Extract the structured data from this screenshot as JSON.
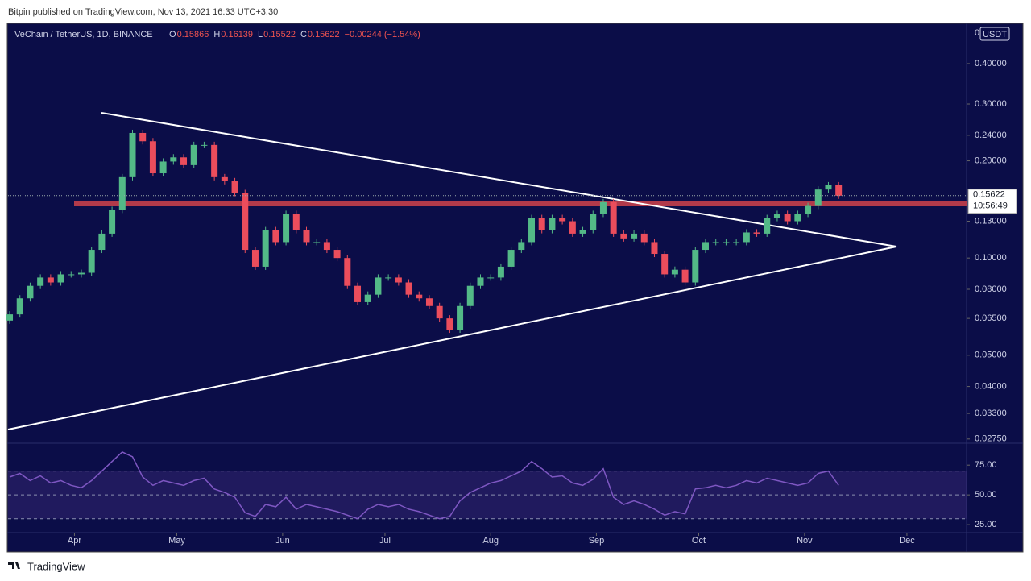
{
  "header": {
    "publisher": "Bitpin published on TradingView.com, Nov 13, 2021 16:33 UTC+3:30",
    "symbol": "VeChain / TetherUS, 1D, BINANCE",
    "ohlc": [
      {
        "key": "O",
        "value": "0.15866"
      },
      {
        "key": "H",
        "value": "0.16139"
      },
      {
        "key": "L",
        "value": "0.15522"
      },
      {
        "key": "C",
        "value": "0.15622"
      }
    ],
    "change": "−0.00244 (−1.54%)",
    "axis_corner": "0",
    "currency": "USDT",
    "last_price_label": "0.15622",
    "countdown": "10:56:49"
  },
  "footer": "TradingView",
  "chart_data": [
    {
      "type": "candlestick",
      "log_scale": true,
      "up_color": "#53b987",
      "down_color": "#eb4d5c",
      "xlim": [
        -0.16,
        93.5
      ],
      "ylim": [
        0.027,
        0.53
      ],
      "yticks": [
        {
          "value": 0.0275,
          "label": "0.02750"
        },
        {
          "value": 0.033,
          "label": "0.03300"
        },
        {
          "value": 0.04,
          "label": "0.04000"
        },
        {
          "value": 0.05,
          "label": "0.05000"
        },
        {
          "value": 0.065,
          "label": "0.06500"
        },
        {
          "value": 0.08,
          "label": "0.08000"
        },
        {
          "value": 0.1,
          "label": "0.10000"
        },
        {
          "value": 0.13,
          "label": "0.13000"
        },
        {
          "value": 0.2,
          "label": "0.20000"
        },
        {
          "value": 0.24,
          "label": "0.24000"
        },
        {
          "value": 0.3,
          "label": "0.30000"
        },
        {
          "value": 0.4,
          "label": "0.40000"
        }
      ],
      "open": [
        0.064,
        0.0669,
        0.075,
        0.082,
        0.087,
        0.084,
        0.089,
        0.089,
        0.09,
        0.106,
        0.119,
        0.141,
        0.178,
        0.244,
        0.23,
        0.183,
        0.199,
        0.205,
        0.194,
        0.224,
        0.224,
        0.178,
        0.173,
        0.159,
        0.106,
        0.094,
        0.122,
        0.112,
        0.137,
        0.122,
        0.112,
        0.112,
        0.106,
        0.1,
        0.082,
        0.073,
        0.077,
        0.087,
        0.087,
        0.084,
        0.077,
        0.075,
        0.071,
        0.065,
        0.06,
        0.071,
        0.082,
        0.087,
        0.087,
        0.094,
        0.106,
        0.112,
        0.133,
        0.122,
        0.133,
        0.13,
        0.119,
        0.122,
        0.137,
        0.149,
        0.119,
        0.115,
        0.119,
        0.112,
        0.103,
        0.089,
        0.092,
        0.084,
        0.106,
        0.112,
        0.112,
        0.112,
        0.112,
        0.12,
        0.119,
        0.133,
        0.137,
        0.13,
        0.137,
        0.145,
        0.163,
        0.168
      ],
      "close": [
        0.0669,
        0.075,
        0.082,
        0.087,
        0.084,
        0.089,
        0.089,
        0.09,
        0.106,
        0.119,
        0.141,
        0.178,
        0.244,
        0.23,
        0.183,
        0.199,
        0.205,
        0.194,
        0.224,
        0.224,
        0.178,
        0.173,
        0.159,
        0.106,
        0.094,
        0.122,
        0.112,
        0.137,
        0.122,
        0.112,
        0.112,
        0.106,
        0.1,
        0.082,
        0.073,
        0.077,
        0.087,
        0.087,
        0.084,
        0.077,
        0.075,
        0.071,
        0.065,
        0.06,
        0.071,
        0.082,
        0.087,
        0.087,
        0.094,
        0.106,
        0.112,
        0.133,
        0.122,
        0.133,
        0.13,
        0.119,
        0.122,
        0.137,
        0.149,
        0.119,
        0.115,
        0.119,
        0.112,
        0.103,
        0.089,
        0.092,
        0.084,
        0.106,
        0.112,
        0.112,
        0.112,
        0.112,
        0.12,
        0.119,
        0.133,
        0.137,
        0.13,
        0.137,
        0.145,
        0.163,
        0.168,
        0.156
      ]
    },
    {
      "type": "line",
      "color": "#7e57c2",
      "xlim": [
        -0.16,
        93.5
      ],
      "ylim": [
        19,
        90
      ],
      "xticks": [
        {
          "value": 6.33,
          "label": "Apr"
        },
        {
          "value": 16.33,
          "label": "May"
        },
        {
          "value": 26.67,
          "label": "Jun"
        },
        {
          "value": 36.67,
          "label": "Jul"
        },
        {
          "value": 47,
          "label": "Aug"
        },
        {
          "value": 57.33,
          "label": "Sep"
        },
        {
          "value": 67.33,
          "label": "Oct"
        },
        {
          "value": 77.67,
          "label": "Nov"
        },
        {
          "value": 87.67,
          "label": "Dec"
        }
      ],
      "yticks": [
        {
          "value": 25,
          "label": "25.00"
        },
        {
          "value": 50,
          "label": "50.00"
        },
        {
          "value": 75,
          "label": "75.00"
        }
      ],
      "levels": [
        30,
        50,
        70
      ],
      "values": [
        65,
        68,
        62,
        66,
        60,
        62,
        58,
        56,
        62,
        70,
        78,
        86,
        82,
        65,
        58,
        62,
        60,
        58,
        62,
        64,
        55,
        52,
        48,
        35,
        32,
        42,
        40,
        48,
        38,
        42,
        40,
        38,
        36,
        33,
        30,
        38,
        42,
        40,
        42,
        38,
        36,
        33,
        30,
        32,
        45,
        52,
        56,
        60,
        62,
        66,
        70,
        78,
        72,
        65,
        66,
        60,
        58,
        63,
        72,
        48,
        42,
        45,
        42,
        38,
        33,
        36,
        34,
        55,
        56,
        58,
        56,
        58,
        62,
        60,
        64,
        62,
        60,
        58,
        60,
        68,
        70,
        58
      ]
    }
  ]
}
